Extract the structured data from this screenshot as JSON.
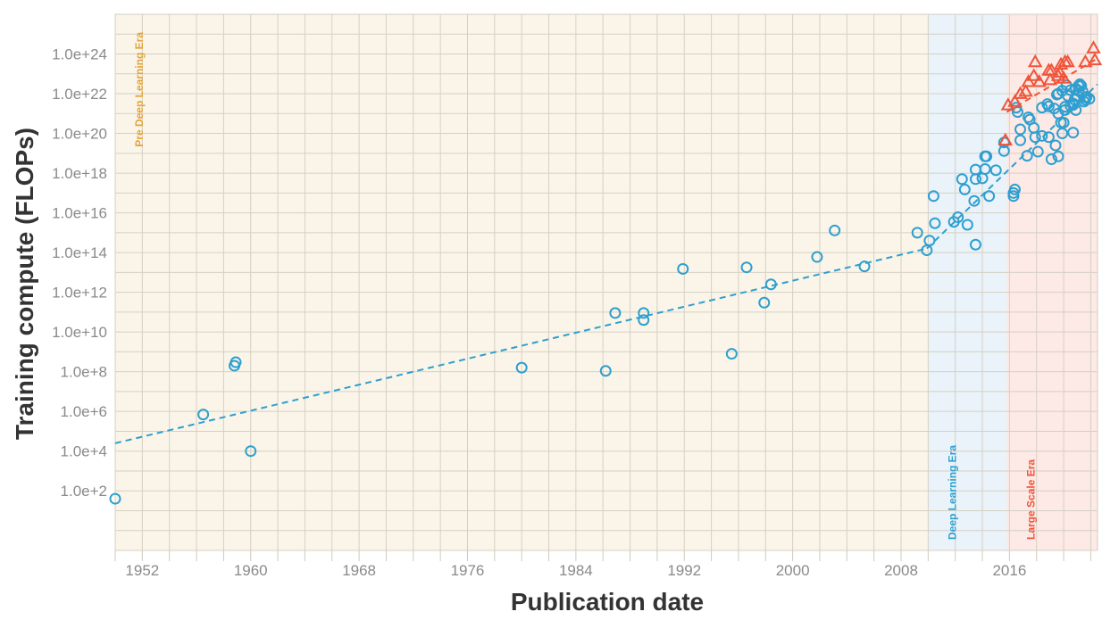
{
  "chart_data": {
    "type": "scatter",
    "title": "",
    "xlabel": "Publication date",
    "ylabel": "Training compute (FLOPs)",
    "x_scale": "date",
    "y_scale": "log10",
    "xlim": [
      1950,
      2022.5
    ],
    "ylim": [
      0.1,
      1e+26
    ],
    "x_ticks": [
      "1952",
      "1960",
      "1968",
      "1976",
      "1984",
      "1992",
      "2000",
      "2008",
      "2016"
    ],
    "y_ticks": [
      "1.0e+2",
      "1.0e+4",
      "1.0e+6",
      "1.0e+8",
      "1.0e+10",
      "1.0e+12",
      "1.0e+14",
      "1.0e+16",
      "1.0e+18",
      "1.0e+20",
      "1.0e+22",
      "1.0e+24"
    ],
    "grid": true,
    "eras": [
      {
        "label": "Pre Deep Learning Era",
        "start": 1950,
        "end": 2010,
        "fill": "#faf5e8",
        "text_color": "#e3a43a"
      },
      {
        "label": "Deep Learning Era",
        "start": 2010,
        "end": 2015.8,
        "fill": "#eaf3fa",
        "text_color": "#2e9fd0"
      },
      {
        "label": "Large Scale Era",
        "start": 2015.8,
        "end": 2022.5,
        "fill": "#fde9e5",
        "text_color": "#f0543a"
      }
    ],
    "series": [
      {
        "marker": "circle",
        "color": "#2e9fd0",
        "points": [
          [
            1950.0,
            40.0
          ],
          [
            1956.5,
            700000.0
          ],
          [
            1958.8,
            200000000.0
          ],
          [
            1958.9,
            300000000.0
          ],
          [
            1960.0,
            10000.0
          ],
          [
            1980.0,
            160000000.0
          ],
          [
            1986.2,
            110000000.0
          ],
          [
            1986.9,
            90000000000.0
          ],
          [
            1989.0,
            90000000000.0
          ],
          [
            1989.0,
            40000000000.0
          ],
          [
            1991.9,
            15000000000000.0
          ],
          [
            1995.5,
            800000000.0
          ],
          [
            1996.6,
            18000000000000.0
          ],
          [
            1997.9,
            300000000000.0
          ],
          [
            1998.4,
            2500000000000.0
          ],
          [
            2001.8,
            60000000000000.0
          ],
          [
            2003.1,
            1300000000000000.0
          ],
          [
            2005.3,
            20000000000000.0
          ],
          [
            2009.2,
            1000000000000000.0
          ],
          [
            2009.9,
            130000000000000.0
          ],
          [
            2010.1,
            400000000000000.0
          ],
          [
            2010.4,
            7e+16
          ],
          [
            2010.5,
            3000000000000000.0
          ],
          [
            2011.9,
            3500000000000000.0
          ],
          [
            2012.2,
            6000000000000000.0
          ],
          [
            2012.5,
            5e+17
          ],
          [
            2012.7,
            1.5e+17
          ],
          [
            2012.9,
            2500000000000000.0
          ],
          [
            2013.4,
            4e+16
          ],
          [
            2013.5,
            5e+17
          ],
          [
            2013.5,
            1.5e+18
          ],
          [
            2013.5,
            250000000000000.0
          ],
          [
            2014.0,
            5.5e+17
          ],
          [
            2014.2,
            1.6e+18
          ],
          [
            2014.2,
            7e+18
          ],
          [
            2014.3,
            7e+18
          ],
          [
            2014.5,
            7e+16
          ],
          [
            2015.0,
            1.4e+18
          ],
          [
            2015.6,
            1.3e+19
          ],
          [
            2015.6,
            3.5e+19
          ],
          [
            2016.3,
            7e+16
          ],
          [
            2016.3,
            1e+17
          ],
          [
            2016.4,
            1.5e+17
          ],
          [
            2016.5,
            2e+21
          ],
          [
            2016.6,
            1.2e+21
          ],
          [
            2016.8,
            4.5e+19
          ],
          [
            2016.8,
            1.6e+20
          ],
          [
            2017.3,
            7.5e+18
          ],
          [
            2017.4,
            6.5e+20
          ],
          [
            2017.5,
            5e+20
          ],
          [
            2017.8,
            1.9e+20
          ],
          [
            2017.9,
            6.5e+19
          ],
          [
            2018.1,
            1.2e+19
          ],
          [
            2018.4,
            7.5e+19
          ],
          [
            2018.4,
            2e+21
          ],
          [
            2018.8,
            3e+21
          ],
          [
            2018.9,
            2.3e+21
          ],
          [
            2018.9,
            6.5e+19
          ],
          [
            2019.1,
            5e+18
          ],
          [
            2019.3,
            1.8e+21
          ],
          [
            2019.4,
            2.5e+19
          ],
          [
            2019.5,
            9e+21
          ],
          [
            2019.6,
            1e+22
          ],
          [
            2019.6,
            7e+18
          ],
          [
            2019.6,
            1e+21
          ],
          [
            2019.8,
            3.5e+20
          ],
          [
            2019.9,
            1e+20
          ],
          [
            2019.9,
            1.4e+22
          ],
          [
            2020.0,
            3.5e+20
          ],
          [
            2020.1,
            2.2e+21
          ],
          [
            2020.1,
            1.5e+21
          ],
          [
            2020.2,
            2.7e+22
          ],
          [
            2020.3,
            8e+21
          ],
          [
            2020.5,
            1.5e+22
          ],
          [
            2020.5,
            2.5e+21
          ],
          [
            2020.7,
            1.1e+20
          ],
          [
            2020.7,
            3.2e+21
          ],
          [
            2020.7,
            2.7e+21
          ],
          [
            2020.8,
            5e+21
          ],
          [
            2020.9,
            1.8e+22
          ],
          [
            2020.9,
            1.5e+21
          ],
          [
            2021.0,
            8e+21
          ],
          [
            2021.1,
            2.5e+22
          ],
          [
            2021.1,
            1.4e+22
          ],
          [
            2021.2,
            3e+22
          ],
          [
            2021.3,
            2.5e+22
          ],
          [
            2021.4,
            1.3e+22
          ],
          [
            2021.5,
            4e+21
          ],
          [
            2021.6,
            6.5e+21
          ],
          [
            2021.6,
            5e+21
          ],
          [
            2021.7,
            7e+21
          ],
          [
            2021.9,
            5.5e+21
          ]
        ]
      },
      {
        "marker": "triangle",
        "color": "#f0543a",
        "points": [
          [
            2015.7,
            4.5e+19
          ],
          [
            2015.9,
            2.7e+21
          ],
          [
            2016.4,
            4e+21
          ],
          [
            2016.8,
            1e+22
          ],
          [
            2017.2,
            1.3e+22
          ],
          [
            2017.4,
            4e+22
          ],
          [
            2017.8,
            8e+22
          ],
          [
            2017.9,
            4e+23
          ],
          [
            2018.2,
            4e+22
          ],
          [
            2018.9,
            1.5e+23
          ],
          [
            2019.0,
            5e+22
          ],
          [
            2019.1,
            1.5e+23
          ],
          [
            2019.6,
            8e+22
          ],
          [
            2019.7,
            1.2e+23
          ],
          [
            2019.8,
            3e+23
          ],
          [
            2020.0,
            6e+22
          ],
          [
            2020.1,
            4e+23
          ],
          [
            2020.3,
            4e+23
          ],
          [
            2021.6,
            4e+23
          ],
          [
            2022.2,
            2e+24
          ],
          [
            2022.3,
            5e+23
          ]
        ]
      }
    ],
    "trend_lines": [
      {
        "color": "#2e9fd0",
        "from": [
          1950.0,
          25000.0
        ],
        "to": [
          2009.9,
          160000000000000.0
        ]
      },
      {
        "color": "#2e9fd0",
        "from": [
          2009.9,
          160000000000000.0
        ],
        "to": [
          2022.5,
          3e+22
        ]
      },
      {
        "color": "#f0543a",
        "from": [
          2015.8,
          1.2e+21
        ],
        "to": [
          2022.5,
          6e+23
        ]
      }
    ]
  }
}
